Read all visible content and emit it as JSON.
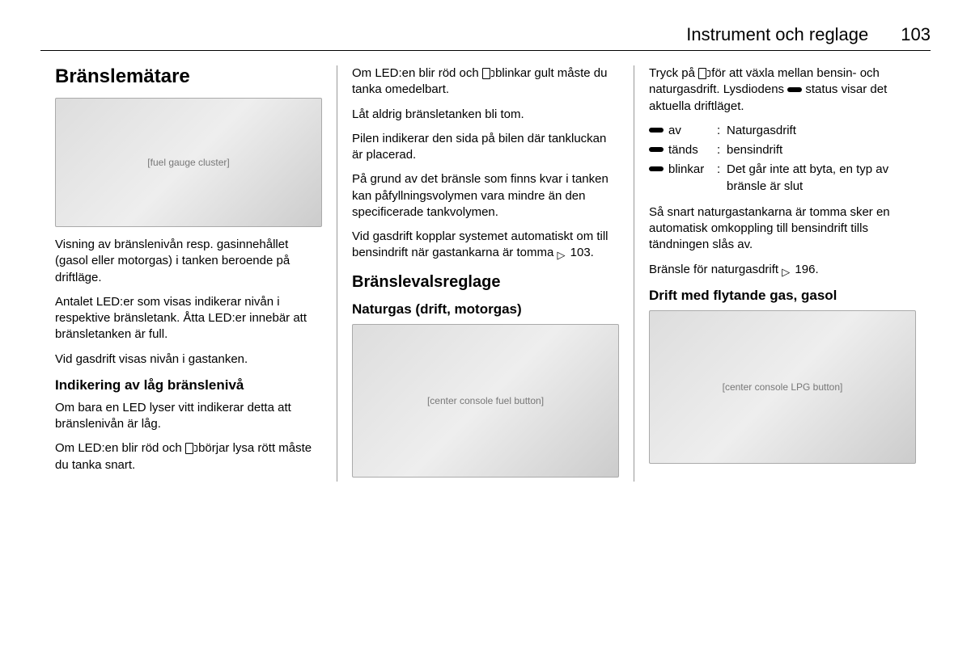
{
  "header": {
    "section": "Instrument och reglage",
    "page": "103"
  },
  "col1": {
    "h2": "Bränslemätare",
    "img_alt": "[fuel gauge cluster]",
    "p1": "Visning av bränslenivån resp. gasinnehållet (gasol eller motorgas) i tanken beroende på driftläge.",
    "p2": "Antalet LED:er som visas indikerar nivån i respektive bränsletank. Åtta LED:er innebär att bränsletanken är full.",
    "p3": "Vid gasdrift visas nivån i gastanken.",
    "h4": "Indikering av låg bränslenivå",
    "p4": "Om bara en LED lyser vitt indikerar detta att bränslenivån är låg.",
    "p5a": "Om LED:en blir röd och ",
    "p5b": " börjar lysa rött måste du tanka snart."
  },
  "col2": {
    "p1a": "Om LED:en blir röd och ",
    "p1b": " blinkar gult måste du tanka omedelbart.",
    "p2": "Låt aldrig bränsletanken bli tom.",
    "p3": "Pilen indikerar den sida på bilen där tankluckan är placerad.",
    "p4": "På grund av det bränsle som finns kvar i tanken kan påfyllningsvolymen vara mindre än den specificerade tankvolymen.",
    "p5a": "Vid gasdrift kopplar systemet automatiskt om till bensindrift när gastankarna är tomma ",
    "p5b": " 103.",
    "h3": "Bränslevalsreglage",
    "h4": "Naturgas (drift, motorgas)",
    "img_alt": "[center console fuel button]"
  },
  "col3": {
    "p1a": "Tryck på ",
    "p1b": " för att växla mellan bensin- och naturgasdrift. Lysdiodens ",
    "p1c": " status visar det aktuella driftläget.",
    "status": [
      {
        "key": "av",
        "val": "Naturgasdrift"
      },
      {
        "key": "tänds",
        "val": "bensindrift"
      },
      {
        "key": "blinkar",
        "val": "Det går inte att byta, en typ av bränsle är slut"
      }
    ],
    "p2": "Så snart naturgastankarna är tomma sker en automatisk omkoppling till bensindrift tills tändningen slås av.",
    "p3a": "Bränsle för naturgasdrift ",
    "p3b": " 196.",
    "h4": "Drift med flytande gas, gasol",
    "img_alt": "[center console LPG button]"
  }
}
